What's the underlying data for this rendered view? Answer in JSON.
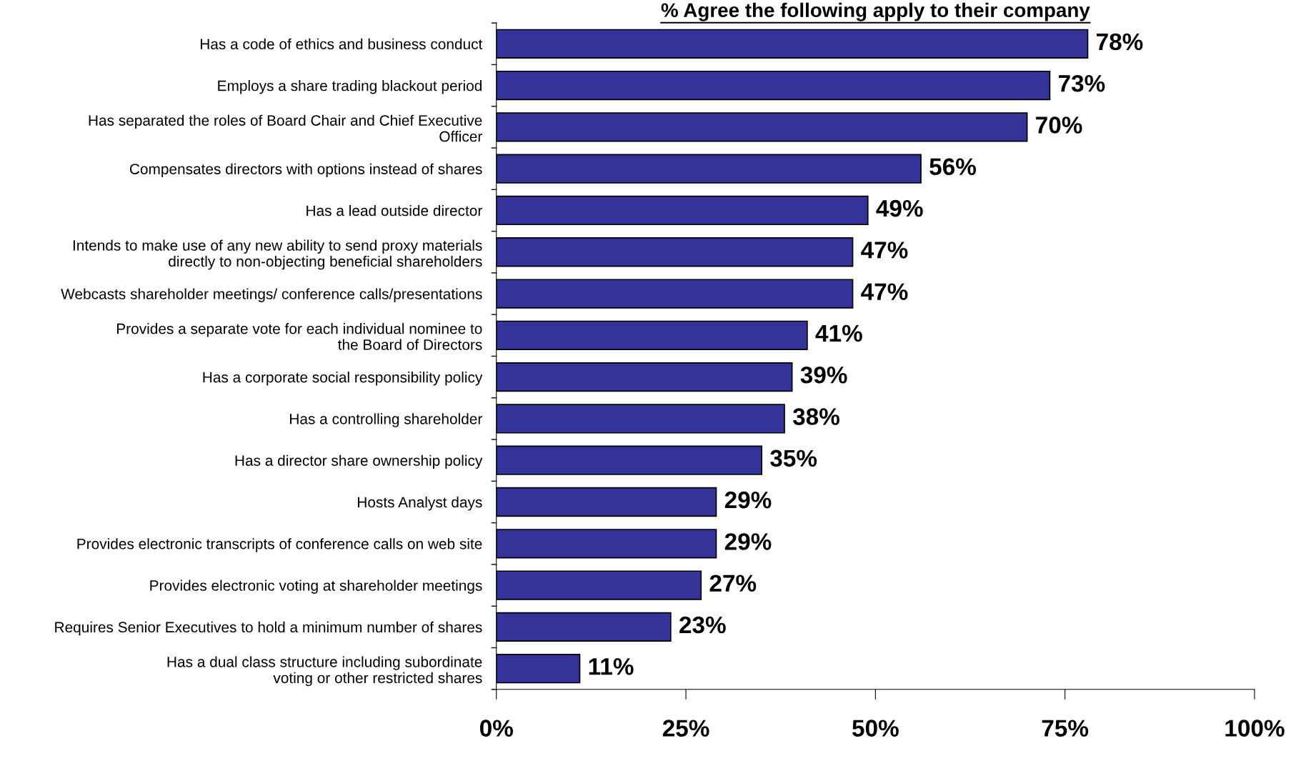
{
  "chart_data": {
    "type": "bar",
    "orientation": "horizontal",
    "title": "% Agree the following apply to their company",
    "categories": [
      "Has a code of ethics and business conduct",
      "Employs a share trading blackout period",
      "Has separated the roles of Board Chair and Chief Executive\nOfficer",
      "Compensates directors with options instead of shares",
      "Has a lead outside director",
      "Intends to make use of any new ability to send proxy materials\ndirectly to non-objecting beneficial shareholders",
      "Webcasts shareholder meetings/ conference calls/presentations",
      "Provides a separate vote for each individual nominee to\nthe Board of Directors",
      "Has a corporate social responsibility policy",
      "Has a controlling shareholder",
      "Has a director share ownership policy",
      "Hosts Analyst days",
      "Provides electronic transcripts of conference calls on web site",
      "Provides electronic voting at shareholder meetings",
      "Requires Senior Executives to hold a minimum number of shares",
      "Has a dual class structure including subordinate\nvoting or other restricted shares"
    ],
    "values": [
      78,
      73,
      70,
      56,
      49,
      47,
      47,
      41,
      39,
      38,
      35,
      29,
      29,
      27,
      23,
      11
    ],
    "value_labels": [
      "78%",
      "73%",
      "70%",
      "56%",
      "49%",
      "47%",
      "47%",
      "41%",
      "39%",
      "38%",
      "35%",
      "29%",
      "29%",
      "27%",
      "23%",
      "11%"
    ],
    "color": "#333399",
    "xlim": [
      0,
      100
    ],
    "xticks": [
      {
        "value": 0,
        "label": "0%"
      },
      {
        "value": 25,
        "label": "25%"
      },
      {
        "value": 50,
        "label": "50%"
      },
      {
        "value": 75,
        "label": "75%"
      },
      {
        "value": 100,
        "label": "100%"
      }
    ],
    "grid": false,
    "legend": false
  }
}
